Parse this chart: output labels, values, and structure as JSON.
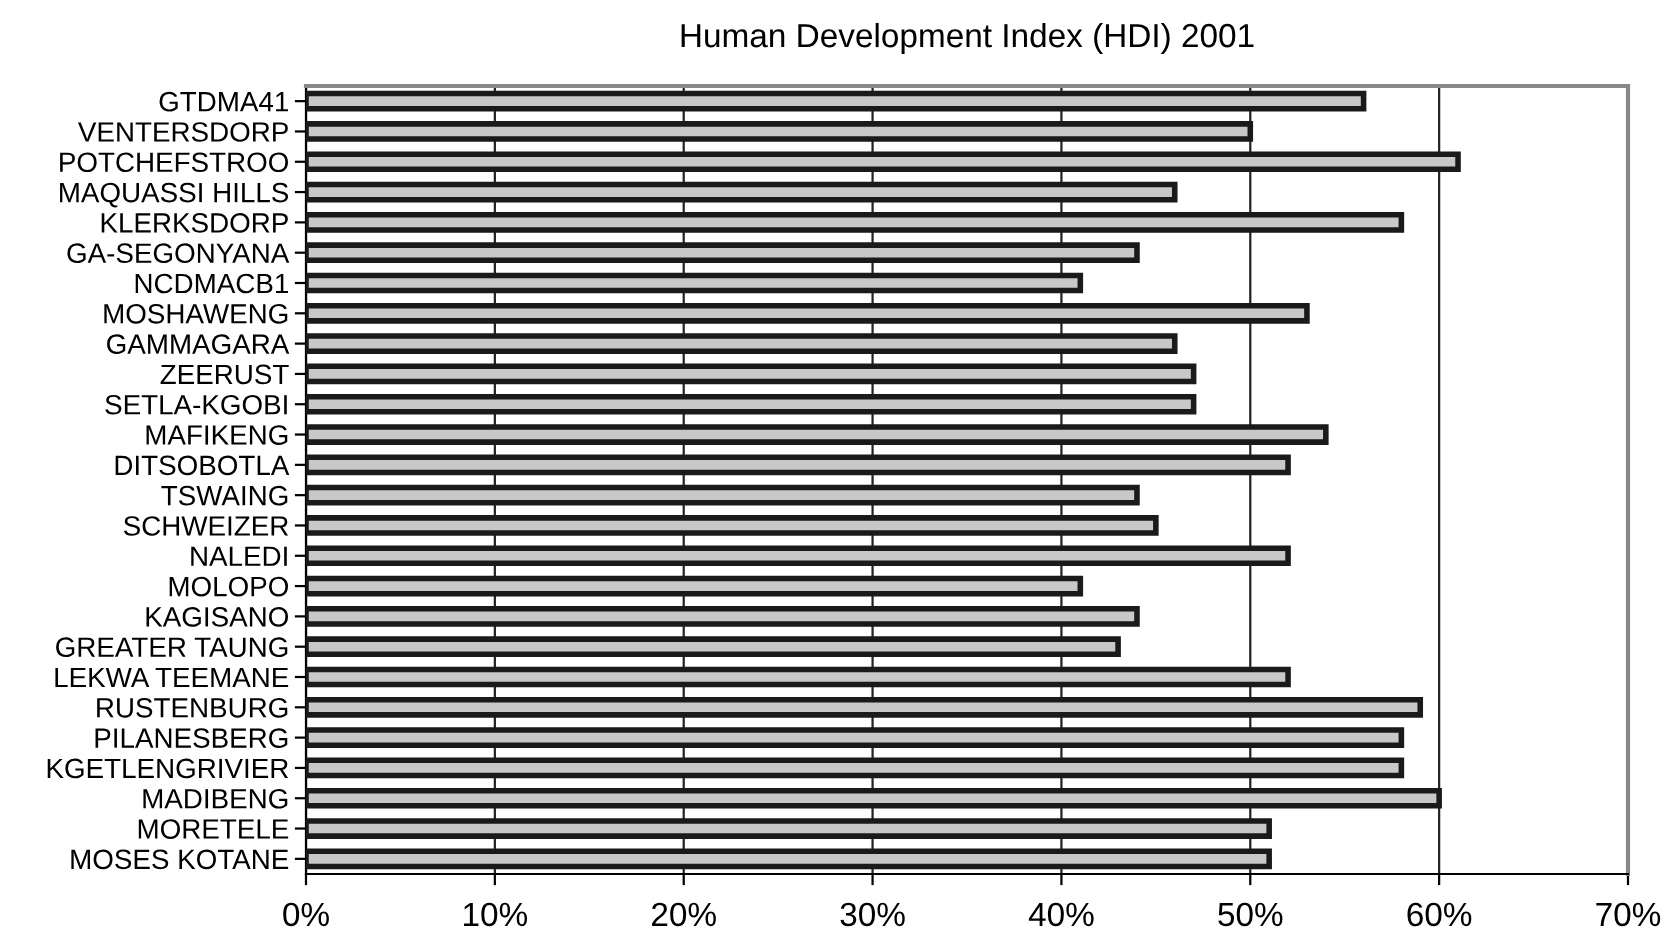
{
  "chart_data": {
    "type": "bar",
    "orientation": "horizontal",
    "title": "Human Development Index (HDI) 2001",
    "categories": [
      "GTDMA41",
      "VENTERSDORP",
      "POTCHEFSTROO",
      "MAQUASSI HILLS",
      "KLERKSDORP",
      "GA-SEGONYANA",
      "NCDMACB1",
      "MOSHAWENG",
      "GAMMAGARA",
      "ZEERUST",
      "SETLA-KGOBI",
      "MAFIKENG",
      "DITSOBOTLA",
      "TSWAING",
      "SCHWEIZER",
      "NALEDI",
      "MOLOPO",
      "KAGISANO",
      "GREATER TAUNG",
      "LEKWA TEEMANE",
      "RUSTENBURG",
      "PILANESBERG",
      "KGETLENGRIVIER",
      "MADIBENG",
      "MORETELE",
      "MOSES KOTANE"
    ],
    "values": [
      56,
      50,
      61,
      46,
      58,
      44,
      41,
      53,
      46,
      47,
      47,
      54,
      52,
      44,
      45,
      52,
      41,
      44,
      43,
      52,
      59,
      58,
      58,
      60,
      51,
      51
    ],
    "color": "#c8c8c8",
    "xlim": [
      0,
      70
    ],
    "xticks": [
      {
        "value": 0,
        "label": "0%"
      },
      {
        "value": 10,
        "label": "10%"
      },
      {
        "value": 20,
        "label": "20%"
      },
      {
        "value": 30,
        "label": "30%"
      },
      {
        "value": 40,
        "label": "40%"
      },
      {
        "value": 50,
        "label": "50%"
      },
      {
        "value": 60,
        "label": "60%"
      },
      {
        "value": 70,
        "label": "70%"
      }
    ],
    "grid": "x"
  }
}
